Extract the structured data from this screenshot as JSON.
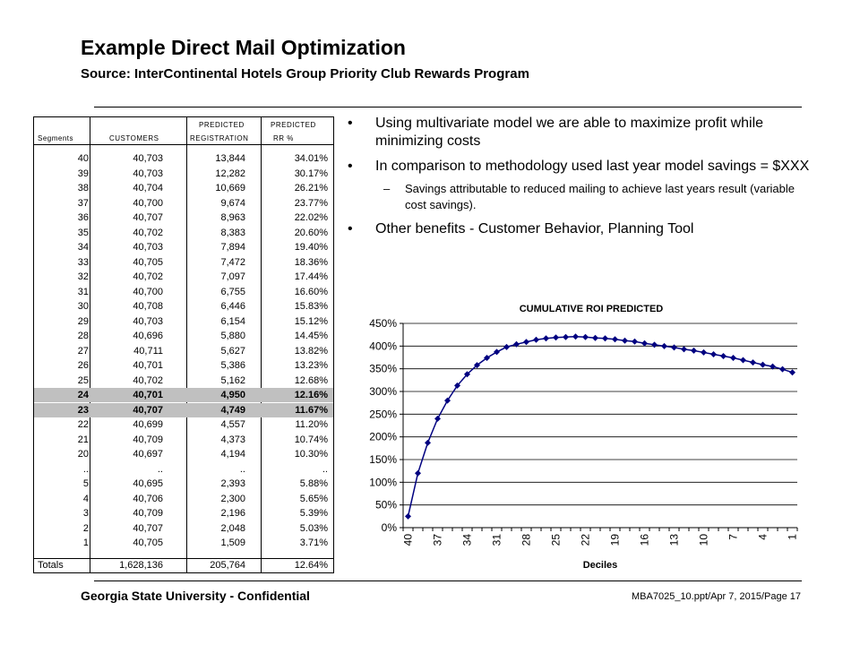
{
  "slide": {
    "title": "Example Direct Mail Optimization",
    "subtitle": "Source: InterContinental Hotels Group Priority Club Rewards Program",
    "footer_left": "Georgia State University - Confidential",
    "footer_right": "MBA7025_10.ppt/Apr 7, 2015/Page 17"
  },
  "table": {
    "header_top": [
      "PREDICTED",
      "PREDICTED"
    ],
    "headers": [
      "Segments",
      "CUSTOMERS",
      "REGISTRATION",
      "RR  %"
    ],
    "rows": [
      [
        "40",
        "40,703",
        "13,844",
        "34.01%"
      ],
      [
        "39",
        "40,703",
        "12,282",
        "30.17%"
      ],
      [
        "38",
        "40,704",
        "10,669",
        "26.21%"
      ],
      [
        "37",
        "40,700",
        "9,674",
        "23.77%"
      ],
      [
        "36",
        "40,707",
        "8,963",
        "22.02%"
      ],
      [
        "35",
        "40,702",
        "8,383",
        "20.60%"
      ],
      [
        "34",
        "40,703",
        "7,894",
        "19.40%"
      ],
      [
        "33",
        "40,705",
        "7,472",
        "18.36%"
      ],
      [
        "32",
        "40,702",
        "7,097",
        "17.44%"
      ],
      [
        "31",
        "40,700",
        "6,755",
        "16.60%"
      ],
      [
        "30",
        "40,708",
        "6,446",
        "15.83%"
      ],
      [
        "29",
        "40,703",
        "6,154",
        "15.12%"
      ],
      [
        "28",
        "40,696",
        "5,880",
        "14.45%"
      ],
      [
        "27",
        "40,711",
        "5,627",
        "13.82%"
      ],
      [
        "26",
        "40,701",
        "5,386",
        "13.23%"
      ],
      [
        "25",
        "40,702",
        "5,162",
        "12.68%"
      ],
      [
        "24",
        "40,701",
        "4,950",
        "12.16%"
      ],
      [
        "23",
        "40,707",
        "4,749",
        "11.67%"
      ],
      [
        "22",
        "40,699",
        "4,557",
        "11.20%"
      ],
      [
        "21",
        "40,709",
        "4,373",
        "10.74%"
      ],
      [
        "20",
        "40,697",
        "4,194",
        "10.30%"
      ],
      [
        "..",
        "..",
        "..",
        ".."
      ],
      [
        "5",
        "40,695",
        "2,393",
        "5.88%"
      ],
      [
        "4",
        "40,706",
        "2,300",
        "5.65%"
      ],
      [
        "3",
        "40,709",
        "2,196",
        "5.39%"
      ],
      [
        "2",
        "40,707",
        "2,048",
        "5.03%"
      ],
      [
        "1",
        "40,705",
        "1,509",
        "3.71%"
      ]
    ],
    "highlighted_segments": [
      "24",
      "23"
    ],
    "totals": [
      "Totals",
      "1,628,136",
      "205,764",
      "12.64%"
    ]
  },
  "bullets": [
    {
      "level": 1,
      "text": "Using multivariate model we are able to maximize profit while minimizing costs"
    },
    {
      "level": 1,
      "text": "In comparison to methodology used last year model savings = $XXX"
    },
    {
      "level": 2,
      "text": "Savings attributable to reduced mailing to achieve last years result (variable cost savings)."
    },
    {
      "level": 1,
      "text": "Other benefits - Customer Behavior, Planning Tool"
    }
  ],
  "chart_data": {
    "type": "line",
    "title": "CUMULATIVE ROI PREDICTED",
    "xlabel": "Deciles",
    "ylabel": "",
    "x": [
      40,
      39,
      38,
      37,
      36,
      35,
      34,
      33,
      32,
      31,
      30,
      29,
      28,
      27,
      26,
      25,
      24,
      23,
      22,
      21,
      20,
      19,
      18,
      17,
      16,
      15,
      14,
      13,
      12,
      11,
      10,
      9,
      8,
      7,
      6,
      5,
      4,
      3,
      2,
      1
    ],
    "x_tick_labels": [
      "40",
      "37",
      "34",
      "31",
      "28",
      "25",
      "22",
      "19",
      "16",
      "13",
      "10",
      "7",
      "4",
      "1"
    ],
    "series": [
      {
        "values": [
          25,
          120,
          187,
          240,
          280,
          313,
          338,
          358,
          374,
          387,
          398,
          404,
          409,
          414,
          417,
          419,
          420,
          421,
          420,
          418,
          417,
          415,
          412,
          410,
          406,
          403,
          400,
          397,
          393,
          390,
          386,
          382,
          378,
          374,
          369,
          364,
          359,
          355,
          349,
          342
        ],
        "color": "#000080",
        "marker": "diamond"
      }
    ],
    "ylim": [
      0,
      450
    ],
    "y_ticks": [
      0,
      50,
      100,
      150,
      200,
      250,
      300,
      350,
      400,
      450
    ],
    "y_tick_format": "percent",
    "grid": "horizontal",
    "legend": "none"
  }
}
